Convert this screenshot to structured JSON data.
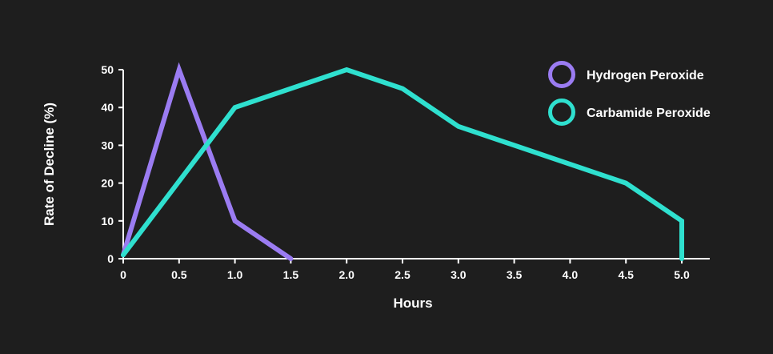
{
  "chart_data": {
    "type": "line",
    "xlabel": "Hours",
    "ylabel": "Rate of Decline (%)",
    "xlim": [
      0,
      5.25
    ],
    "ylim": [
      0,
      50
    ],
    "x_ticks": [
      "0",
      "0.5",
      "1.0",
      "1.5",
      "2.0",
      "2.5",
      "3.0",
      "3.5",
      "4.0",
      "4.5",
      "5.0"
    ],
    "y_ticks": [
      "0",
      "10",
      "20",
      "30",
      "40",
      "50"
    ],
    "grid": false,
    "legend_position": "top-right",
    "series": [
      {
        "name": "Hydrogen Peroxide",
        "color": "#9b7cf2",
        "points": [
          [
            0,
            1
          ],
          [
            0.5,
            50
          ],
          [
            1.0,
            10
          ],
          [
            1.5,
            0
          ]
        ]
      },
      {
        "name": "Carbamide Peroxide",
        "color": "#2fe0cf",
        "points": [
          [
            0,
            1
          ],
          [
            1.0,
            40
          ],
          [
            2.0,
            50
          ],
          [
            2.5,
            45
          ],
          [
            3.0,
            35
          ],
          [
            4.5,
            20
          ],
          [
            5.0,
            10
          ],
          [
            5.0,
            0
          ]
        ]
      }
    ]
  }
}
